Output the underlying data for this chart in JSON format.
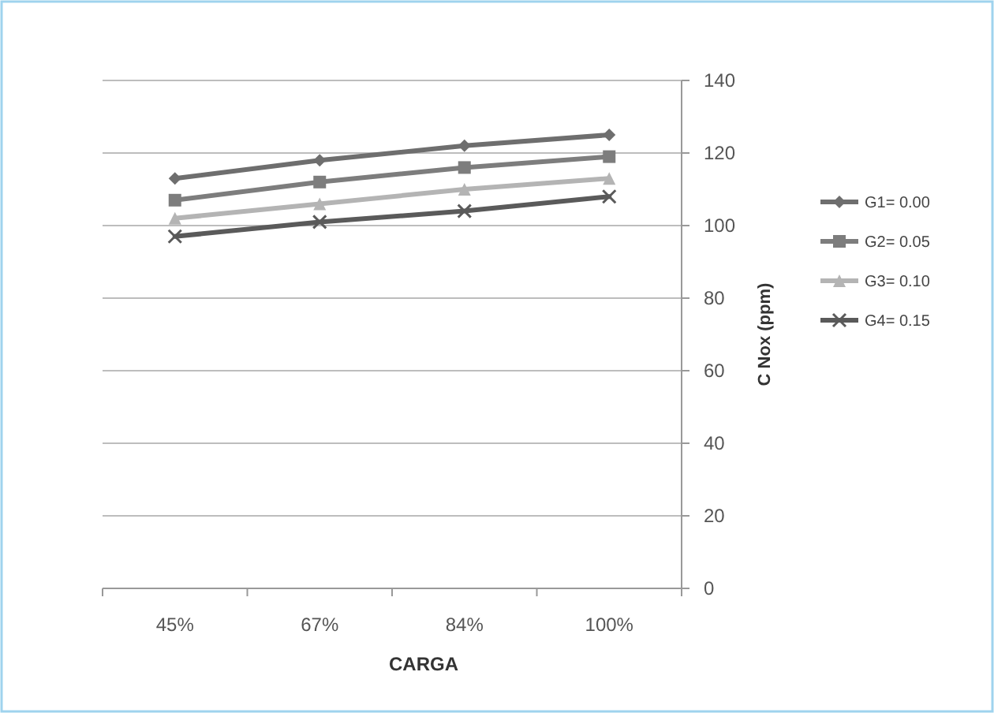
{
  "chart_data": {
    "type": "line",
    "xlabel": "CARGA",
    "ylabel": "C Nox (ppm)",
    "categories": [
      "45%",
      "67%",
      "84%",
      "100%"
    ],
    "series": [
      {
        "name": "G1= 0.00",
        "color": "#6e6e6e",
        "marker": "diamond",
        "values": [
          113,
          118,
          122,
          125
        ]
      },
      {
        "name": "G2= 0.05",
        "color": "#7d7d7d",
        "marker": "square",
        "values": [
          107,
          112,
          116,
          119
        ]
      },
      {
        "name": "G3= 0.10",
        "color": "#b4b4b4",
        "marker": "triangle",
        "values": [
          102,
          106,
          110,
          113
        ]
      },
      {
        "name": "G4= 0.15",
        "color": "#5a5a5a",
        "marker": "cross",
        "values": [
          97,
          101,
          104,
          108
        ]
      }
    ],
    "ylim": [
      0,
      140
    ],
    "yticks": [
      0,
      20,
      40,
      60,
      80,
      100,
      120,
      140
    ],
    "grid": "y",
    "legend": "right"
  }
}
